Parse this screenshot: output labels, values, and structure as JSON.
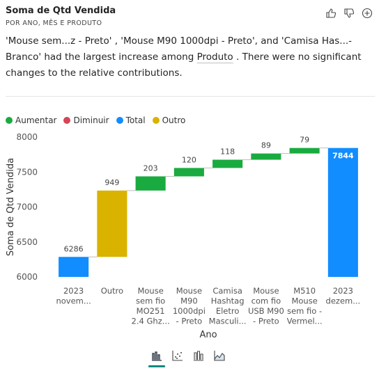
{
  "header": {
    "title": "Soma de Qtd Vendida",
    "subtitle": "POR ANO, MÊS E PRODUTO"
  },
  "narrative": {
    "part1": "'Mouse sem...z - Preto' , 'Mouse M90 1000dpi - Preto', and 'Camisa Has...- Branco' had the largest increase among ",
    "link": "Produto",
    "part2": " . There were no significant changes to the relative contributions."
  },
  "legend": [
    {
      "label": "Aumentar",
      "color": "#1aab40"
    },
    {
      "label": "Diminuir",
      "color": "#d64554"
    },
    {
      "label": "Total",
      "color": "#118dff"
    },
    {
      "label": "Outro",
      "color": "#d9b300"
    }
  ],
  "footer_icons": [
    "waterfall-view-icon",
    "scatter-view-icon",
    "column-view-icon",
    "area-view-icon"
  ],
  "chart_data": {
    "type": "waterfall",
    "xlabel": "Ano",
    "ylabel": "Soma de Qtd Vendida",
    "ylim": [
      6000,
      8000
    ],
    "yticks": [
      6000,
      6500,
      7000,
      7500,
      8000
    ],
    "categories": [
      [
        "2023",
        "novem..."
      ],
      [
        "Outro"
      ],
      [
        "Mouse",
        "sem fio",
        "MO251",
        "2.4 Ghz..."
      ],
      [
        "Mouse",
        "M90",
        "1000dpi",
        "- Preto"
      ],
      [
        "Camisa",
        "Hashtag",
        "Eletro",
        "Masculi..."
      ],
      [
        "Mouse",
        "com fio",
        "USB M90",
        "- Preto"
      ],
      [
        "M510",
        "Mouse",
        "sem fio -",
        "Vermel..."
      ],
      [
        "2023",
        "dezem..."
      ]
    ],
    "bars": [
      {
        "kind": "total",
        "start": 0,
        "end": 6286,
        "label": "6286"
      },
      {
        "kind": "other",
        "start": 6286,
        "end": 7235,
        "label": "949"
      },
      {
        "kind": "increase",
        "start": 7235,
        "end": 7438,
        "label": "203"
      },
      {
        "kind": "increase",
        "start": 7438,
        "end": 7558,
        "label": "120"
      },
      {
        "kind": "increase",
        "start": 7558,
        "end": 7676,
        "label": "118"
      },
      {
        "kind": "increase",
        "start": 7676,
        "end": 7765,
        "label": "89"
      },
      {
        "kind": "increase",
        "start": 7765,
        "end": 7844,
        "label": "79"
      },
      {
        "kind": "total",
        "start": 0,
        "end": 7844,
        "label": "7844"
      }
    ],
    "colors": {
      "increase": "#1aab40",
      "decrease": "#d64554",
      "total": "#118dff",
      "other": "#d9b300"
    }
  }
}
